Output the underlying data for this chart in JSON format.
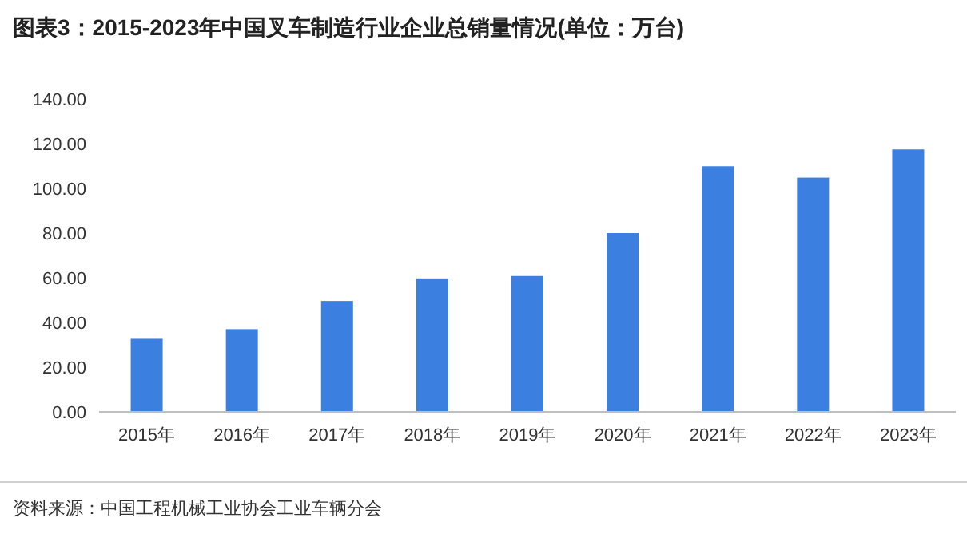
{
  "chart_data": {
    "type": "bar",
    "title": "图表3：2015-2023年中国叉车制造行业企业总销量情况(单位：万台)",
    "categories": [
      "2015年",
      "2016年",
      "2017年",
      "2018年",
      "2019年",
      "2020年",
      "2021年",
      "2022年",
      "2023年"
    ],
    "values": [
      32.7,
      37.0,
      49.6,
      59.7,
      60.8,
      80.0,
      109.9,
      104.8,
      117.4
    ],
    "color": "#3b7fe0",
    "ylim": [
      0,
      140
    ],
    "yticks": [
      {
        "value": 0,
        "label": "0.00"
      },
      {
        "value": 20,
        "label": "20.00"
      },
      {
        "value": 40,
        "label": "40.00"
      },
      {
        "value": 60,
        "label": "60.00"
      },
      {
        "value": 80,
        "label": "80.00"
      },
      {
        "value": 100,
        "label": "100.00"
      },
      {
        "value": 120,
        "label": "120.00"
      },
      {
        "value": 140,
        "label": "140.00"
      }
    ],
    "annotations": [
      "资料来源：中国工程机械工业协会工业车辆分会"
    ]
  }
}
